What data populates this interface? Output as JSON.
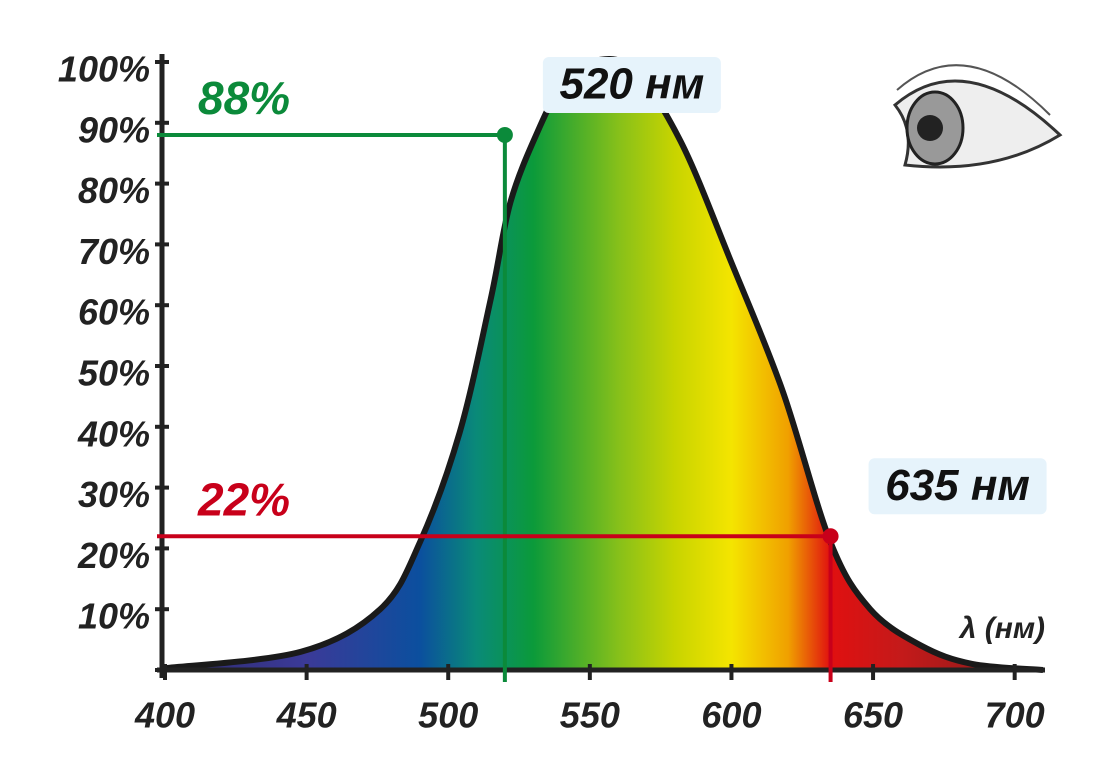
{
  "chart_data": {
    "type": "area",
    "x_label": "λ (нм)",
    "x": [
      400,
      448,
      476,
      490,
      504,
      515,
      522,
      532,
      540,
      550,
      565,
      582,
      600,
      618,
      635,
      649,
      667,
      685,
      710
    ],
    "series": [
      {
        "color": "#1a1a1a",
        "values": [
          0.3,
          3,
          10,
          21,
          39,
          61,
          77,
          89,
          96,
          100,
          99,
          87,
          67,
          46,
          21,
          10,
          4,
          1,
          0
        ]
      }
    ],
    "spectrum": [
      {
        "x": 400,
        "color": "#2d2a6c"
      },
      {
        "x": 450,
        "color": "#3b3a98"
      },
      {
        "x": 490,
        "color": "#0b4f9e"
      },
      {
        "x": 510,
        "color": "#0a8a78"
      },
      {
        "x": 530,
        "color": "#0b9a3a"
      },
      {
        "x": 560,
        "color": "#86c01a"
      },
      {
        "x": 580,
        "color": "#c8d400"
      },
      {
        "x": 600,
        "color": "#f4e500"
      },
      {
        "x": 620,
        "color": "#f0a000"
      },
      {
        "x": 635,
        "color": "#e01010"
      },
      {
        "x": 660,
        "color": "#c41a1a"
      },
      {
        "x": 700,
        "color": "#8a1a1a"
      }
    ],
    "annotations": [
      {
        "label": "88%",
        "value": 88,
        "x": 520,
        "x_label": "520 нм",
        "color": "#0b8a3a"
      },
      {
        "label": "22%",
        "value": 22,
        "x": 635,
        "x_label": "635 нм",
        "color": "#c8001a"
      }
    ],
    "xlim": [
      400,
      710
    ],
    "ylim": [
      0,
      100
    ],
    "xticks": [
      400,
      450,
      500,
      550,
      600,
      650,
      700
    ],
    "yticks": [
      0,
      {
        "value": 10,
        "label": "10%"
      },
      {
        "value": 20,
        "label": "20%"
      },
      {
        "value": 30,
        "label": "30%"
      },
      {
        "value": 40,
        "label": "40%"
      },
      {
        "value": 50,
        "label": "50%"
      },
      {
        "value": 60,
        "label": "60%"
      },
      {
        "value": 70,
        "label": "70%"
      },
      {
        "value": 80,
        "label": "80%"
      },
      {
        "value": 90,
        "label": "90%"
      },
      {
        "value": 100,
        "label": "100%"
      }
    ]
  }
}
